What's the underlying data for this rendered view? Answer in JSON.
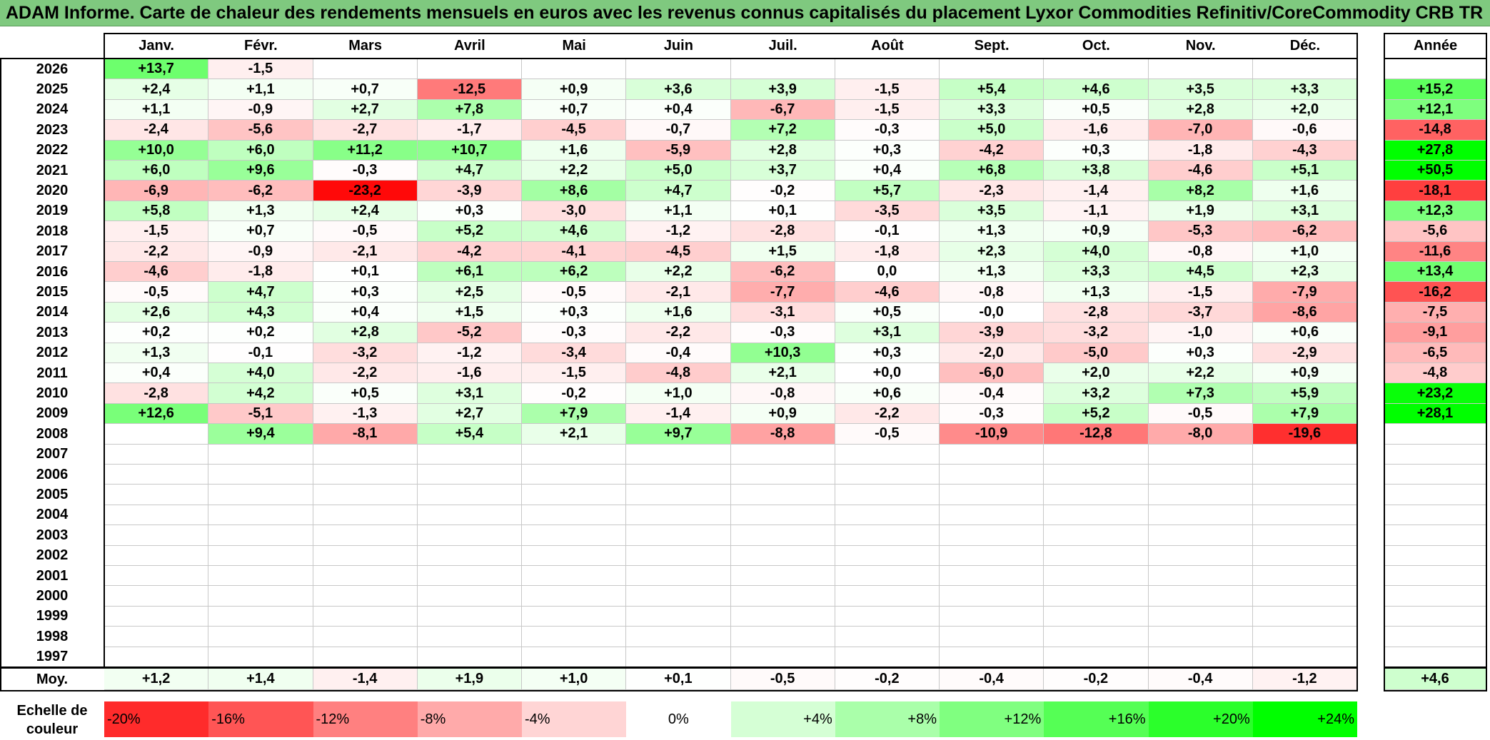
{
  "title": "ADAM Informe. Carte de chaleur des rendements mensuels en euros avec les revenus connus capitalisés du placement Lyxor Commodities Refinitiv/CoreCommodity CRB TR",
  "chart_data": {
    "type": "heatmap",
    "title": "ADAM Informe. Carte de chaleur des rendements mensuels en euros avec les revenus connus capitalisés du placement Lyxor Commodities Refinitiv/CoreCommodity CRB TR",
    "columns": [
      "Janv.",
      "Févr.",
      "Mars",
      "Avril",
      "Mai",
      "Juin",
      "Juil.",
      "Août",
      "Sept.",
      "Oct.",
      "Nov.",
      "Déc."
    ],
    "year_column_label": "Année",
    "rows": [
      {
        "year": "2026",
        "months": [
          "+13,7",
          "-1,5",
          "",
          "",
          "",
          "",
          "",
          "",
          "",
          "",
          "",
          ""
        ],
        "annual": ""
      },
      {
        "year": "2025",
        "months": [
          "+2,4",
          "+1,1",
          "+0,7",
          "-12,5",
          "+0,9",
          "+3,6",
          "+3,9",
          "-1,5",
          "+5,4",
          "+4,6",
          "+3,5",
          "+3,3"
        ],
        "annual": "+15,2"
      },
      {
        "year": "2024",
        "months": [
          "+1,1",
          "-0,9",
          "+2,7",
          "+7,8",
          "+0,7",
          "+0,4",
          "-6,7",
          "-1,5",
          "+3,3",
          "+0,5",
          "+2,8",
          "+2,0"
        ],
        "annual": "+12,1"
      },
      {
        "year": "2023",
        "months": [
          "-2,4",
          "-5,6",
          "-2,7",
          "-1,7",
          "-4,5",
          "-0,7",
          "+7,2",
          "-0,3",
          "+5,0",
          "-1,6",
          "-7,0",
          "-0,6"
        ],
        "annual": "-14,8"
      },
      {
        "year": "2022",
        "months": [
          "+10,0",
          "+6,0",
          "+11,2",
          "+10,7",
          "+1,6",
          "-5,9",
          "+2,8",
          "+0,3",
          "-4,2",
          "+0,3",
          "-1,8",
          "-4,3"
        ],
        "annual": "+27,8"
      },
      {
        "year": "2021",
        "months": [
          "+6,0",
          "+9,6",
          "-0,3",
          "+4,7",
          "+2,2",
          "+5,0",
          "+3,7",
          "+0,4",
          "+6,8",
          "+3,8",
          "-4,6",
          "+5,1"
        ],
        "annual": "+50,5"
      },
      {
        "year": "2020",
        "months": [
          "-6,9",
          "-6,2",
          "-23,2",
          "-3,9",
          "+8,6",
          "+4,7",
          "-0,2",
          "+5,7",
          "-2,3",
          "-1,4",
          "+8,2",
          "+1,6"
        ],
        "annual": "-18,1"
      },
      {
        "year": "2019",
        "months": [
          "+5,8",
          "+1,3",
          "+2,4",
          "+0,3",
          "-3,0",
          "+1,1",
          "+0,1",
          "-3,5",
          "+3,5",
          "-1,1",
          "+1,9",
          "+3,1"
        ],
        "annual": "+12,3"
      },
      {
        "year": "2018",
        "months": [
          "-1,5",
          "+0,7",
          "-0,5",
          "+5,2",
          "+4,6",
          "-1,2",
          "-2,8",
          "-0,1",
          "+1,3",
          "+0,9",
          "-5,3",
          "-6,2"
        ],
        "annual": "-5,6"
      },
      {
        "year": "2017",
        "months": [
          "-2,2",
          "-0,9",
          "-2,1",
          "-4,2",
          "-4,1",
          "-4,5",
          "+1,5",
          "-1,8",
          "+2,3",
          "+4,0",
          "-0,8",
          "+1,0"
        ],
        "annual": "-11,6"
      },
      {
        "year": "2016",
        "months": [
          "-4,6",
          "-1,8",
          "+0,1",
          "+6,1",
          "+6,2",
          "+2,2",
          "-6,2",
          "0,0",
          "+1,3",
          "+3,3",
          "+4,5",
          "+2,3"
        ],
        "annual": "+13,4"
      },
      {
        "year": "2015",
        "months": [
          "-0,5",
          "+4,7",
          "+0,3",
          "+2,5",
          "-0,5",
          "-2,1",
          "-7,7",
          "-4,6",
          "-0,8",
          "+1,3",
          "-1,5",
          "-7,9"
        ],
        "annual": "-16,2"
      },
      {
        "year": "2014",
        "months": [
          "+2,6",
          "+4,3",
          "+0,4",
          "+1,5",
          "+0,3",
          "+1,6",
          "-3,1",
          "+0,5",
          "-0,0",
          "-2,8",
          "-3,7",
          "-8,6"
        ],
        "annual": "-7,5"
      },
      {
        "year": "2013",
        "months": [
          "+0,2",
          "+0,2",
          "+2,8",
          "-5,2",
          "-0,3",
          "-2,2",
          "-0,3",
          "+3,1",
          "-3,9",
          "-3,2",
          "-1,0",
          "+0,6"
        ],
        "annual": "-9,1"
      },
      {
        "year": "2012",
        "months": [
          "+1,3",
          "-0,1",
          "-3,2",
          "-1,2",
          "-3,4",
          "-0,4",
          "+10,3",
          "+0,3",
          "-2,0",
          "-5,0",
          "+0,3",
          "-2,9"
        ],
        "annual": "-6,5"
      },
      {
        "year": "2011",
        "months": [
          "+0,4",
          "+4,0",
          "-2,2",
          "-1,6",
          "-1,5",
          "-4,8",
          "+2,1",
          "+0,0",
          "-6,0",
          "+2,0",
          "+2,2",
          "+0,9"
        ],
        "annual": "-4,8"
      },
      {
        "year": "2010",
        "months": [
          "-2,8",
          "+4,2",
          "+0,5",
          "+3,1",
          "-0,2",
          "+1,0",
          "-0,8",
          "+0,6",
          "-0,4",
          "+3,2",
          "+7,3",
          "+5,9"
        ],
        "annual": "+23,2"
      },
      {
        "year": "2009",
        "months": [
          "+12,6",
          "-5,1",
          "-1,3",
          "+2,7",
          "+7,9",
          "-1,4",
          "+0,9",
          "-2,2",
          "-0,3",
          "+5,2",
          "-0,5",
          "+7,9"
        ],
        "annual": "+28,1"
      },
      {
        "year": "2008",
        "months": [
          "",
          "+9,4",
          "-8,1",
          "+5,4",
          "+2,1",
          "+9,7",
          "-8,8",
          "-0,5",
          "-10,9",
          "-12,8",
          "-8,0",
          "-19,6"
        ],
        "annual": ""
      },
      {
        "year": "2007",
        "months": [
          "",
          "",
          "",
          "",
          "",
          "",
          "",
          "",
          "",
          "",
          "",
          ""
        ],
        "annual": ""
      },
      {
        "year": "2006",
        "months": [
          "",
          "",
          "",
          "",
          "",
          "",
          "",
          "",
          "",
          "",
          "",
          ""
        ],
        "annual": ""
      },
      {
        "year": "2005",
        "months": [
          "",
          "",
          "",
          "",
          "",
          "",
          "",
          "",
          "",
          "",
          "",
          ""
        ],
        "annual": ""
      },
      {
        "year": "2004",
        "months": [
          "",
          "",
          "",
          "",
          "",
          "",
          "",
          "",
          "",
          "",
          "",
          ""
        ],
        "annual": ""
      },
      {
        "year": "2003",
        "months": [
          "",
          "",
          "",
          "",
          "",
          "",
          "",
          "",
          "",
          "",
          "",
          ""
        ],
        "annual": ""
      },
      {
        "year": "2002",
        "months": [
          "",
          "",
          "",
          "",
          "",
          "",
          "",
          "",
          "",
          "",
          "",
          ""
        ],
        "annual": ""
      },
      {
        "year": "2001",
        "months": [
          "",
          "",
          "",
          "",
          "",
          "",
          "",
          "",
          "",
          "",
          "",
          ""
        ],
        "annual": ""
      },
      {
        "year": "2000",
        "months": [
          "",
          "",
          "",
          "",
          "",
          "",
          "",
          "",
          "",
          "",
          "",
          ""
        ],
        "annual": ""
      },
      {
        "year": "1999",
        "months": [
          "",
          "",
          "",
          "",
          "",
          "",
          "",
          "",
          "",
          "",
          "",
          ""
        ],
        "annual": ""
      },
      {
        "year": "1998",
        "months": [
          "",
          "",
          "",
          "",
          "",
          "",
          "",
          "",
          "",
          "",
          "",
          ""
        ],
        "annual": ""
      },
      {
        "year": "1997",
        "months": [
          "",
          "",
          "",
          "",
          "",
          "",
          "",
          "",
          "",
          "",
          "",
          ""
        ],
        "annual": ""
      }
    ],
    "average": {
      "label": "Moy.",
      "months": [
        "+1,2",
        "+1,4",
        "-1,4",
        "+1,9",
        "+1,0",
        "+0,1",
        "-0,5",
        "-0,2",
        "-0,4",
        "-0,2",
        "-0,4",
        "-1,2"
      ],
      "annual": "+4,6"
    },
    "legend": {
      "label": "Echelle de couleur",
      "items": [
        "-20%",
        "-16%",
        "-12%",
        "-8%",
        "-4%",
        "0%",
        "+4%",
        "+8%",
        "+12%",
        "+16%",
        "+20%",
        "+24%"
      ],
      "values": [
        -20,
        -16,
        -12,
        -8,
        -4,
        0,
        4,
        8,
        12,
        16,
        20,
        24
      ]
    }
  }
}
